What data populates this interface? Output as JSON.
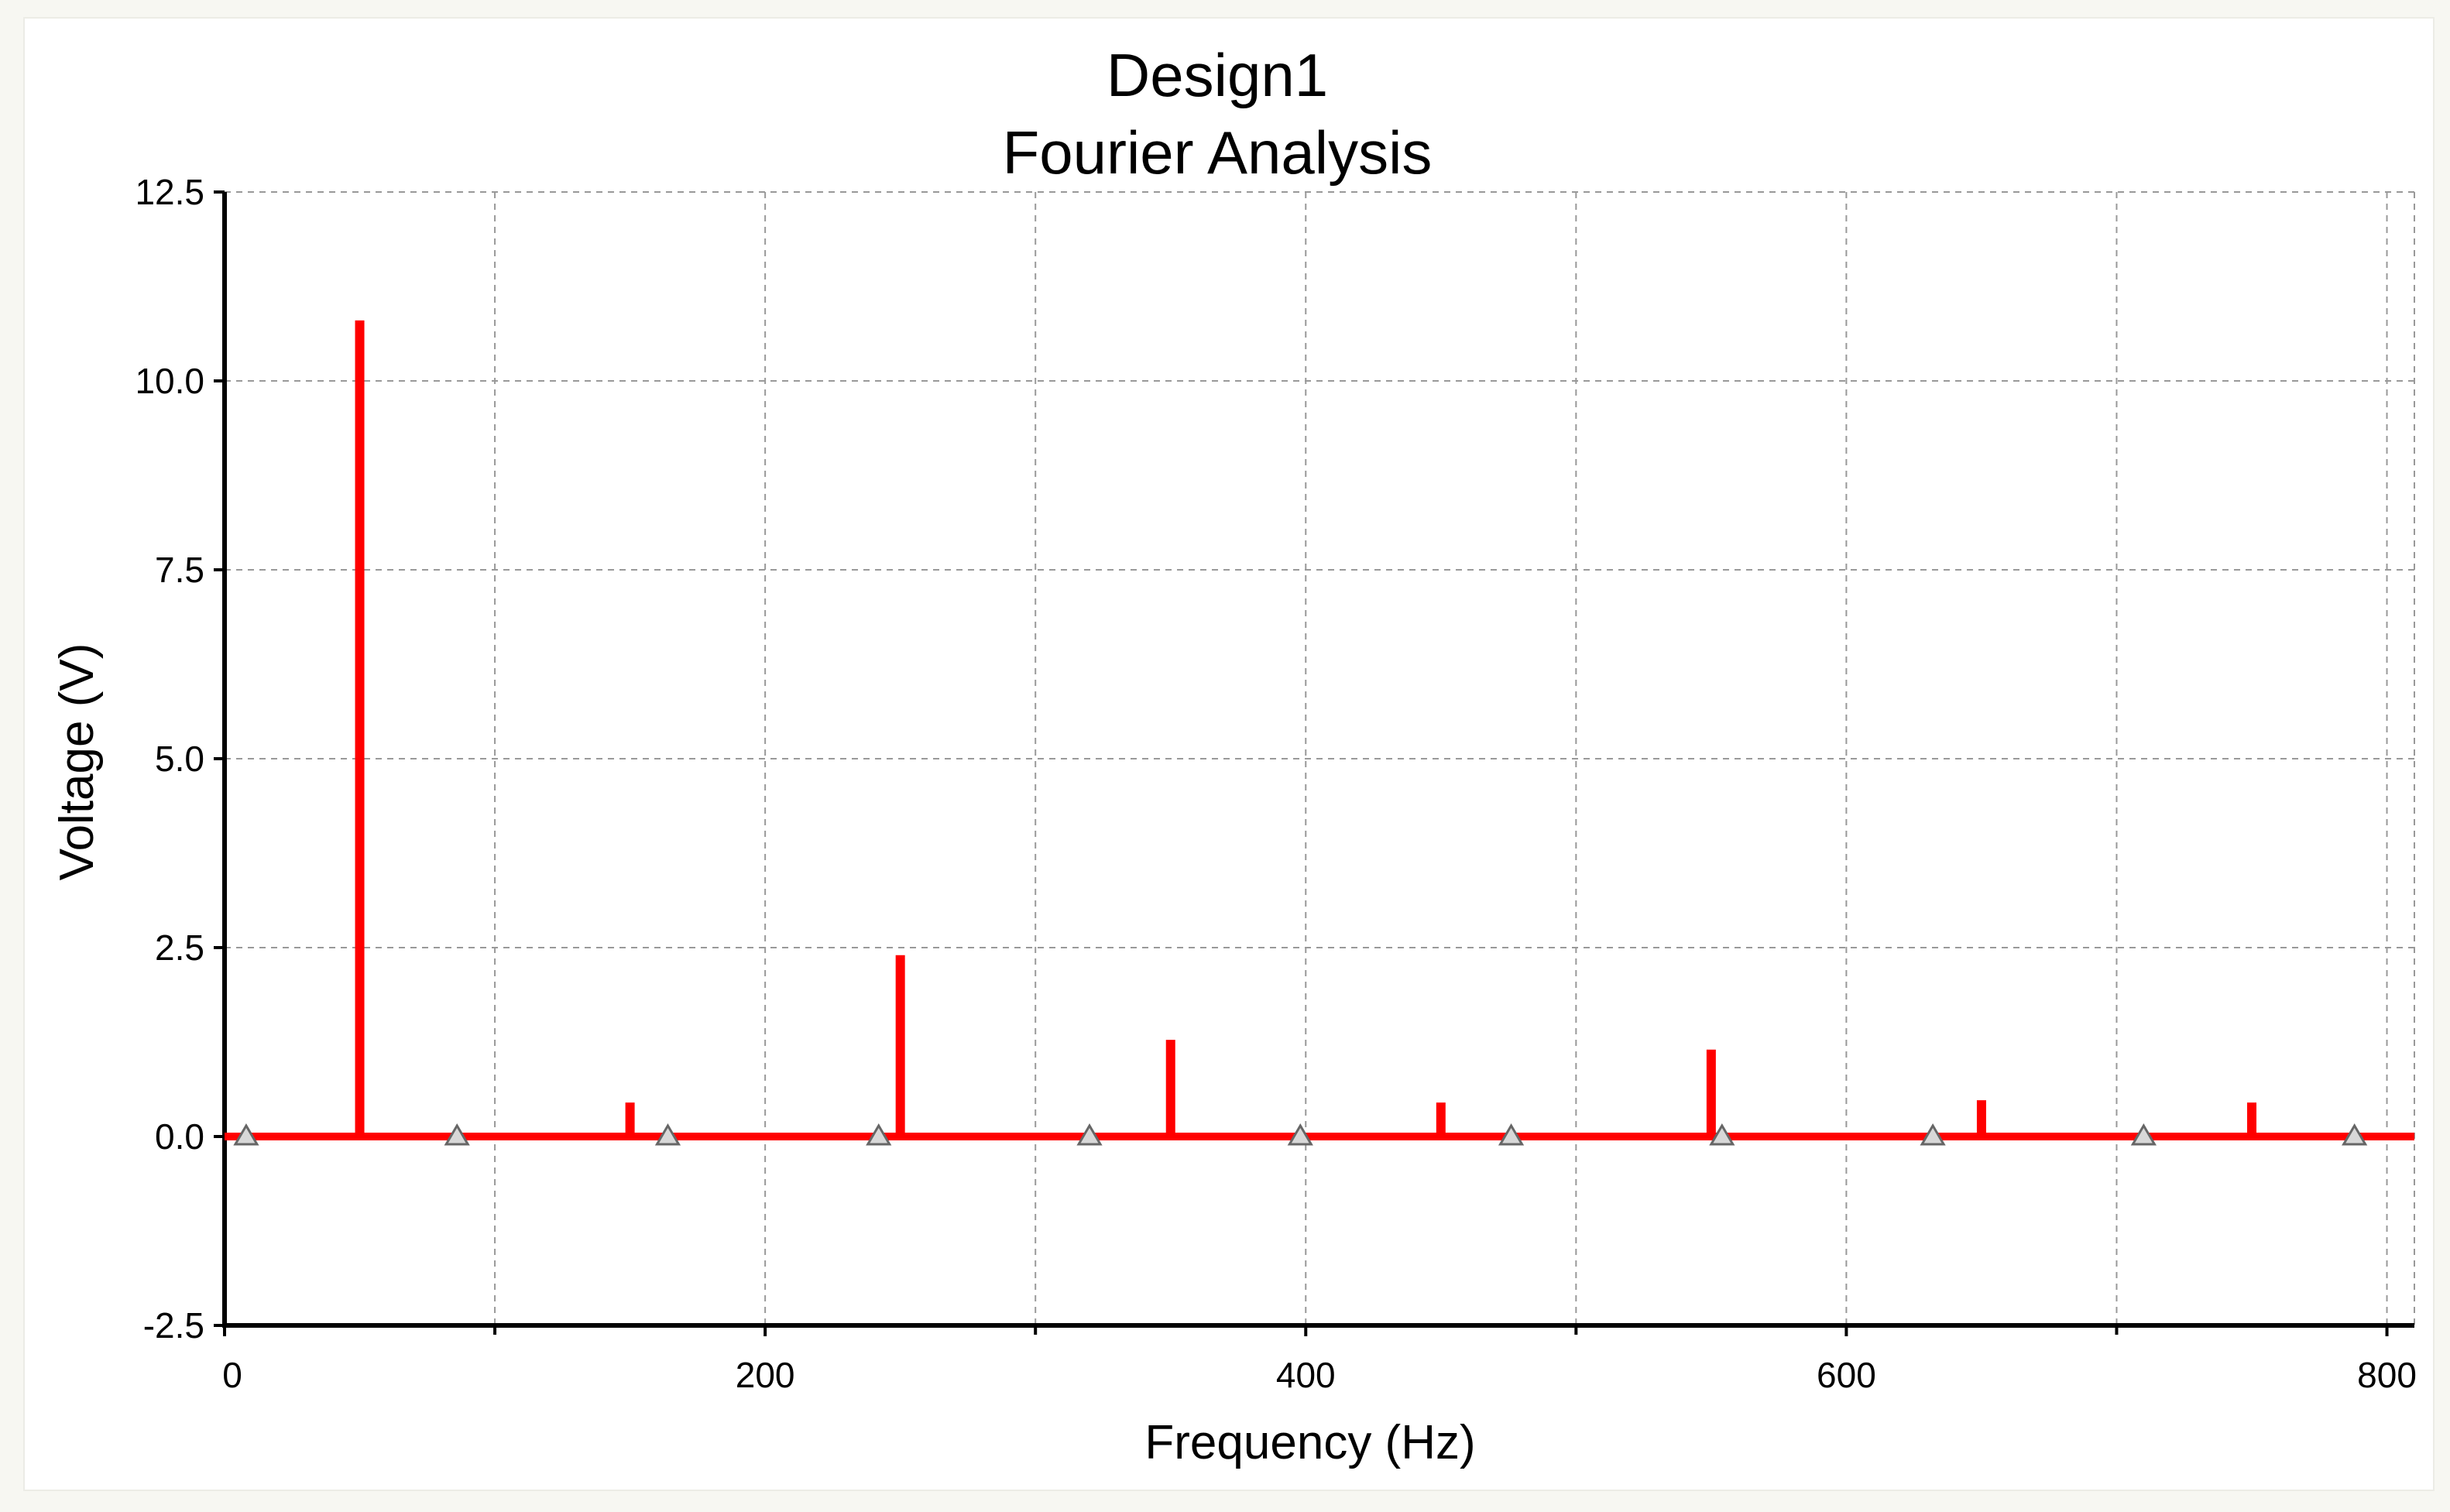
{
  "chart_data": {
    "type": "bar",
    "title": "Design1",
    "subtitle": "Fourier Analysis",
    "xlabel": "Frequency (Hz)",
    "ylabel": "Voltage (V)",
    "xlim": [
      0,
      805
    ],
    "ylim": [
      -2.5,
      12.5
    ],
    "x_ticks": [
      0,
      200,
      400,
      600,
      800
    ],
    "x_tick_labels": [
      "0",
      "200",
      "400",
      "600",
      "800"
    ],
    "x_minor_ticks": [
      100,
      300,
      500,
      700
    ],
    "y_ticks": [
      -2.5,
      0.0,
      2.5,
      5.0,
      7.5,
      10.0,
      12.5
    ],
    "y_tick_labels": [
      "-2.5",
      "0.0",
      "2.5",
      "5.0",
      "7.5",
      "10.0",
      "12.5"
    ],
    "grid": true,
    "grid_style": "dashed",
    "series": [
      {
        "color": "#ff0000",
        "x": [
          50,
          150,
          250,
          350,
          450,
          550,
          650,
          750
        ],
        "values": [
          10.8,
          0.45,
          2.4,
          1.28,
          0.45,
          1.15,
          0.48,
          0.45
        ]
      }
    ],
    "zero_markers_x": [
      8,
      86,
      164,
      242,
      320,
      398,
      476,
      554,
      632,
      710,
      788
    ],
    "colors": {
      "stem": "#ff0000",
      "grid": "#999999",
      "axis": "#000000",
      "marker_fill": "#d8d8d8",
      "marker_stroke": "#666666"
    }
  }
}
